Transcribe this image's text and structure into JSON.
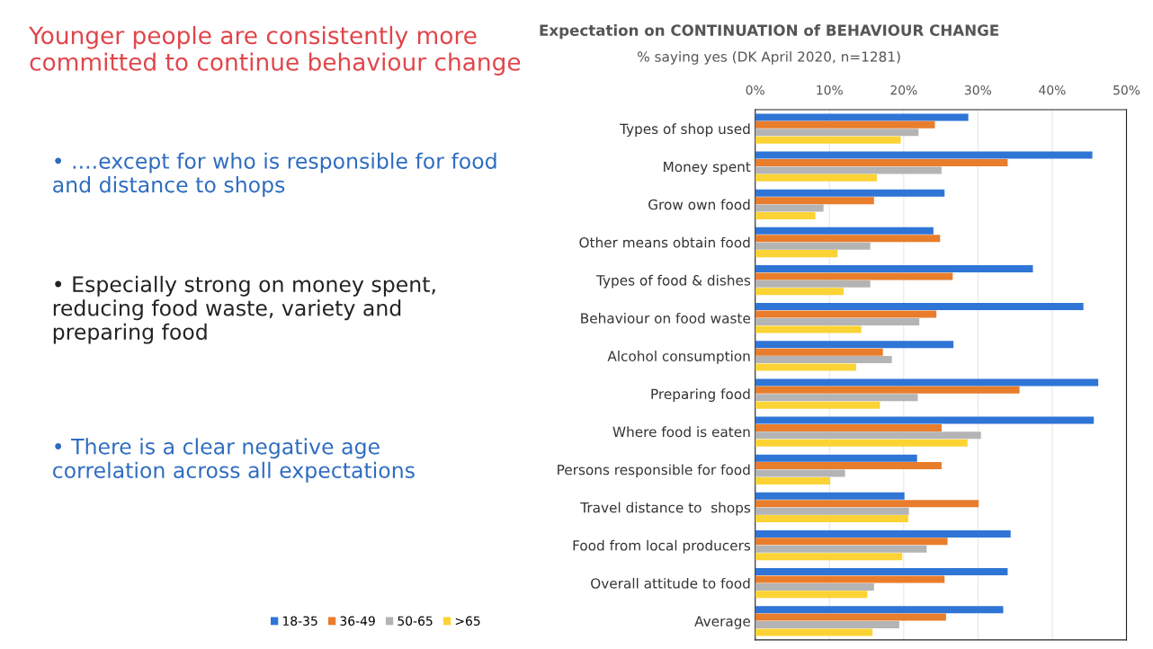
{
  "chart_data": {
    "type": "bar",
    "orientation": "horizontal",
    "title": "Expectation on CONTINUATION of BEHAVIOUR CHANGE",
    "subtitle": "% saying yes (DK April 2020, n=1281)",
    "categories": [
      "Types of shop used",
      "Money spent",
      "Grow own food",
      "Other means obtain food",
      "Types of food & dishes",
      "Behaviour on food waste",
      "Alcohol consumption",
      "Preparing food",
      "Where food is eaten",
      "Persons responsible for food",
      "Travel distance to  shops",
      "Food from local producers",
      "Overall attitude to food",
      "Average"
    ],
    "series": [
      {
        "name": "18-35",
        "color": "#2f75d6",
        "values": [
          28.7,
          45.4,
          25.5,
          24.0,
          37.4,
          44.2,
          26.7,
          46.2,
          45.6,
          21.8,
          20.1,
          34.4,
          34.0,
          33.4
        ]
      },
      {
        "name": "36-49",
        "color": "#e87d2c",
        "values": [
          24.2,
          34.0,
          16.0,
          24.9,
          26.6,
          24.4,
          17.2,
          35.6,
          25.1,
          25.1,
          30.1,
          25.9,
          25.5,
          25.7
        ]
      },
      {
        "name": "50-65",
        "color": "#b4b4b4",
        "values": [
          22.0,
          25.1,
          9.2,
          15.5,
          15.5,
          22.1,
          18.4,
          21.9,
          30.4,
          12.1,
          20.7,
          23.1,
          16.0,
          19.4
        ]
      },
      {
        "name": ">65",
        "color": "#fbd334",
        "values": [
          19.6,
          16.4,
          8.1,
          11.1,
          11.9,
          14.3,
          13.6,
          16.8,
          28.6,
          10.1,
          20.6,
          19.8,
          15.1,
          15.8
        ]
      }
    ],
    "xlim": [
      0,
      50
    ],
    "xticks": [
      {
        "value": 0,
        "label": "0%"
      },
      {
        "value": 10,
        "label": "10%"
      },
      {
        "value": 20,
        "label": "20%"
      },
      {
        "value": 30,
        "label": "30%"
      },
      {
        "value": 40,
        "label": "40%"
      },
      {
        "value": 50,
        "label": "50%"
      }
    ],
    "grid": "x",
    "legend": "bottom left",
    "annotations": [
      "Younger people are consistently more committed to continue behaviour change",
      "• ....except for who is responsible for food and distance to shops",
      "• Especially strong on money spent, reducing food waste, variety and preparing food",
      "• There is a clear negative age correlation across all expectations"
    ]
  }
}
